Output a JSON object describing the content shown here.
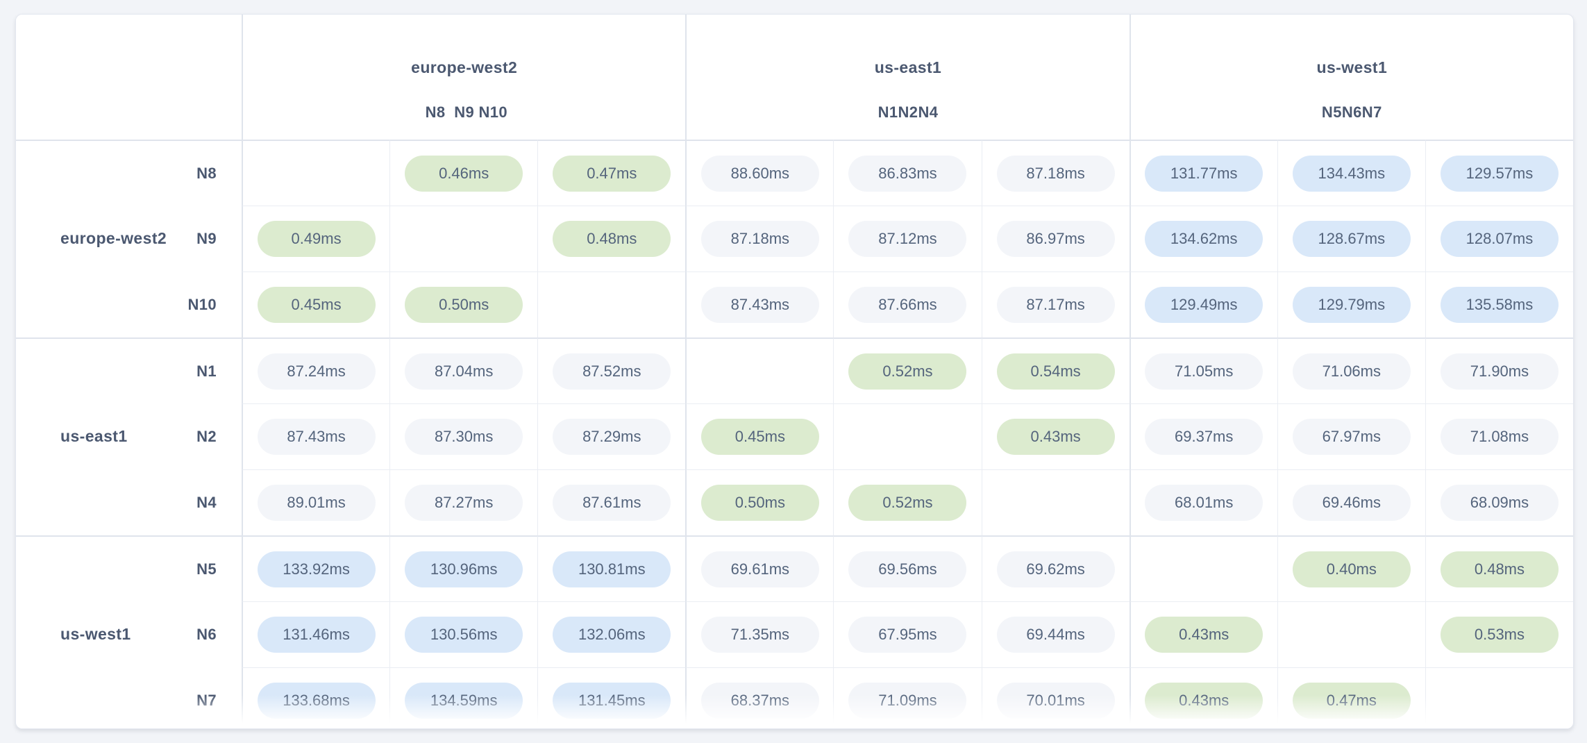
{
  "colors": {
    "page_bg": "#f2f4f8",
    "card_bg": "#ffffff",
    "card_border": "#e3e7ef",
    "border_thick": "#dfe4ec",
    "border_thin": "#eaedf3",
    "label_text": "#4b5870",
    "value_text": "#54647c",
    "level_low": "#dcebcf",
    "level_mid": "#f3f5f9",
    "level_high": "#d9e8f9"
  },
  "table": {
    "corner_label": "",
    "column_groups": [
      {
        "region": "europe-west2",
        "nodes": [
          "N8",
          "N9",
          "N10"
        ]
      },
      {
        "region": "us-east1",
        "nodes": [
          "N1",
          "N2",
          "N4"
        ]
      },
      {
        "region": "us-west1",
        "nodes": [
          "N5",
          "N6",
          "N7"
        ]
      }
    ],
    "row_groups": [
      {
        "region": "europe-west2",
        "rows": [
          {
            "node": "N8",
            "cells": [
              null,
              {
                "text": "0.46ms",
                "level": "low"
              },
              {
                "text": "0.47ms",
                "level": "low"
              },
              {
                "text": "88.60ms",
                "level": "mid"
              },
              {
                "text": "86.83ms",
                "level": "mid"
              },
              {
                "text": "87.18ms",
                "level": "mid"
              },
              {
                "text": "131.77ms",
                "level": "high"
              },
              {
                "text": "134.43ms",
                "level": "high"
              },
              {
                "text": "129.57ms",
                "level": "high"
              }
            ]
          },
          {
            "node": "N9",
            "cells": [
              {
                "text": "0.49ms",
                "level": "low"
              },
              null,
              {
                "text": "0.48ms",
                "level": "low"
              },
              {
                "text": "87.18ms",
                "level": "mid"
              },
              {
                "text": "87.12ms",
                "level": "mid"
              },
              {
                "text": "86.97ms",
                "level": "mid"
              },
              {
                "text": "134.62ms",
                "level": "high"
              },
              {
                "text": "128.67ms",
                "level": "high"
              },
              {
                "text": "128.07ms",
                "level": "high"
              }
            ]
          },
          {
            "node": "N10",
            "cells": [
              {
                "text": "0.45ms",
                "level": "low"
              },
              {
                "text": "0.50ms",
                "level": "low"
              },
              null,
              {
                "text": "87.43ms",
                "level": "mid"
              },
              {
                "text": "87.66ms",
                "level": "mid"
              },
              {
                "text": "87.17ms",
                "level": "mid"
              },
              {
                "text": "129.49ms",
                "level": "high"
              },
              {
                "text": "129.79ms",
                "level": "high"
              },
              {
                "text": "135.58ms",
                "level": "high"
              }
            ]
          }
        ]
      },
      {
        "region": "us-east1",
        "rows": [
          {
            "node": "N1",
            "cells": [
              {
                "text": "87.24ms",
                "level": "mid"
              },
              {
                "text": "87.04ms",
                "level": "mid"
              },
              {
                "text": "87.52ms",
                "level": "mid"
              },
              null,
              {
                "text": "0.52ms",
                "level": "low"
              },
              {
                "text": "0.54ms",
                "level": "low"
              },
              {
                "text": "71.05ms",
                "level": "mid"
              },
              {
                "text": "71.06ms",
                "level": "mid"
              },
              {
                "text": "71.90ms",
                "level": "mid"
              }
            ]
          },
          {
            "node": "N2",
            "cells": [
              {
                "text": "87.43ms",
                "level": "mid"
              },
              {
                "text": "87.30ms",
                "level": "mid"
              },
              {
                "text": "87.29ms",
                "level": "mid"
              },
              {
                "text": "0.45ms",
                "level": "low"
              },
              null,
              {
                "text": "0.43ms",
                "level": "low"
              },
              {
                "text": "69.37ms",
                "level": "mid"
              },
              {
                "text": "67.97ms",
                "level": "mid"
              },
              {
                "text": "71.08ms",
                "level": "mid"
              }
            ]
          },
          {
            "node": "N4",
            "cells": [
              {
                "text": "89.01ms",
                "level": "mid"
              },
              {
                "text": "87.27ms",
                "level": "mid"
              },
              {
                "text": "87.61ms",
                "level": "mid"
              },
              {
                "text": "0.50ms",
                "level": "low"
              },
              {
                "text": "0.52ms",
                "level": "low"
              },
              null,
              {
                "text": "68.01ms",
                "level": "mid"
              },
              {
                "text": "69.46ms",
                "level": "mid"
              },
              {
                "text": "68.09ms",
                "level": "mid"
              }
            ]
          }
        ]
      },
      {
        "region": "us-west1",
        "rows": [
          {
            "node": "N5",
            "cells": [
              {
                "text": "133.92ms",
                "level": "high"
              },
              {
                "text": "130.96ms",
                "level": "high"
              },
              {
                "text": "130.81ms",
                "level": "high"
              },
              {
                "text": "69.61ms",
                "level": "mid"
              },
              {
                "text": "69.56ms",
                "level": "mid"
              },
              {
                "text": "69.62ms",
                "level": "mid"
              },
              null,
              {
                "text": "0.40ms",
                "level": "low"
              },
              {
                "text": "0.48ms",
                "level": "low"
              }
            ]
          },
          {
            "node": "N6",
            "cells": [
              {
                "text": "131.46ms",
                "level": "high"
              },
              {
                "text": "130.56ms",
                "level": "high"
              },
              {
                "text": "132.06ms",
                "level": "high"
              },
              {
                "text": "71.35ms",
                "level": "mid"
              },
              {
                "text": "67.95ms",
                "level": "mid"
              },
              {
                "text": "69.44ms",
                "level": "mid"
              },
              {
                "text": "0.43ms",
                "level": "low"
              },
              null,
              {
                "text": "0.53ms",
                "level": "low"
              }
            ]
          },
          {
            "node": "N7",
            "cells": [
              {
                "text": "133.68ms",
                "level": "high"
              },
              {
                "text": "134.59ms",
                "level": "high"
              },
              {
                "text": "131.45ms",
                "level": "high"
              },
              {
                "text": "68.37ms",
                "level": "mid"
              },
              {
                "text": "71.09ms",
                "level": "mid"
              },
              {
                "text": "70.01ms",
                "level": "mid"
              },
              {
                "text": "0.43ms",
                "level": "low"
              },
              {
                "text": "0.47ms",
                "level": "low"
              },
              null
            ]
          }
        ]
      }
    ]
  }
}
